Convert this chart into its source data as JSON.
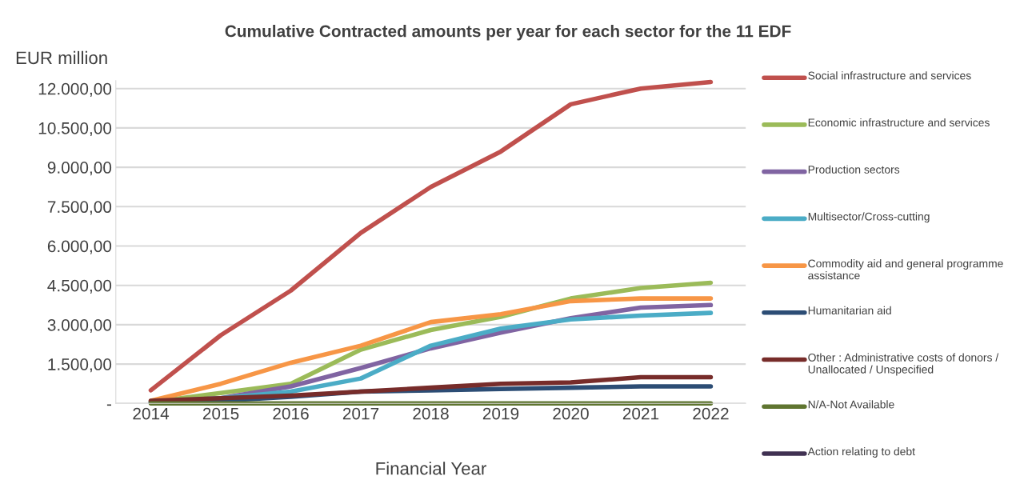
{
  "chart_data": {
    "type": "line",
    "title": "Cumulative Contracted amounts per year for each sector for the 11 EDF",
    "ylabel": "EUR million",
    "xlabel": "Financial Year",
    "categories": [
      "2014",
      "2015",
      "2016",
      "2017",
      "2018",
      "2019",
      "2020",
      "2021",
      "2022"
    ],
    "series": [
      {
        "name": "Social infrastructure and services",
        "color": "#c0504d",
        "values": [
          500,
          2600,
          4300,
          6500,
          8250,
          9600,
          11400,
          12000,
          12250
        ]
      },
      {
        "name": "Economic infrastructure and services",
        "color": "#9bbb59",
        "values": [
          50,
          400,
          750,
          2050,
          2800,
          3300,
          4000,
          4400,
          4600
        ]
      },
      {
        "name": "Production sectors",
        "color": "#8064a2",
        "values": [
          50,
          200,
          650,
          1350,
          2100,
          2700,
          3250,
          3650,
          3750
        ]
      },
      {
        "name": "Multisector/Cross-cutting",
        "color": "#4bacc6",
        "values": [
          50,
          200,
          450,
          950,
          2200,
          2850,
          3200,
          3350,
          3450
        ]
      },
      {
        "name": "Commodity aid and general programme assistance",
        "color": "#f79646",
        "values": [
          100,
          750,
          1550,
          2200,
          3100,
          3400,
          3900,
          4000,
          4000
        ]
      },
      {
        "name": "Humanitarian aid",
        "color": "#2c4d75",
        "values": [
          50,
          100,
          250,
          450,
          500,
          550,
          600,
          650,
          650
        ]
      },
      {
        "name": "Other : Administrative costs of donors / Unallocated / Unspecified",
        "color": "#772c2a",
        "values": [
          100,
          200,
          300,
          450,
          600,
          750,
          800,
          1000,
          1000
        ]
      },
      {
        "name": "N/A-Not Available",
        "color": "#5f7530",
        "values": [
          0,
          0,
          0,
          0,
          0,
          0,
          0,
          0,
          0
        ]
      },
      {
        "name": "Action relating to debt",
        "color": "#403152",
        "values": [
          null,
          null,
          null,
          null,
          null,
          null,
          null,
          null,
          null
        ]
      }
    ],
    "ylim": [
      0,
      12300
    ],
    "yticks": [
      {
        "value": 0,
        "label": "-"
      },
      {
        "value": 1500,
        "label": "1.500,00"
      },
      {
        "value": 3000,
        "label": "3.000,00"
      },
      {
        "value": 4500,
        "label": "4.500,00"
      },
      {
        "value": 6000,
        "label": "6.000,00"
      },
      {
        "value": 7500,
        "label": "7.500,00"
      },
      {
        "value": 9000,
        "label": "9.000,00"
      },
      {
        "value": 10500,
        "label": "10.500,00"
      },
      {
        "value": 12000,
        "label": "12.000,00"
      }
    ],
    "grid": "y",
    "legend": "right",
    "marker": "none",
    "line_style": "solid"
  }
}
